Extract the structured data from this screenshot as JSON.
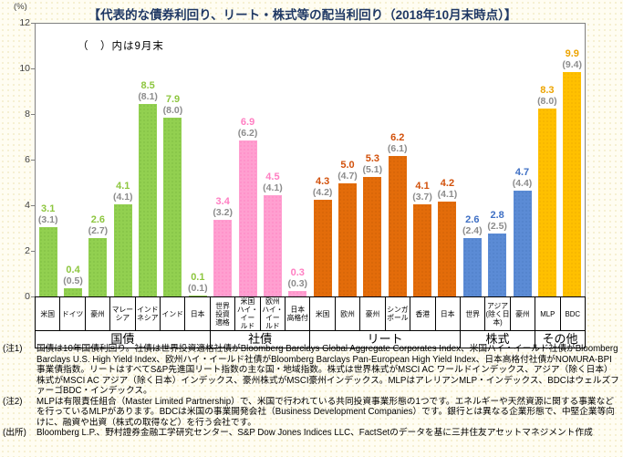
{
  "header": {
    "unit_label": "(%)",
    "title": "【代表的な債券利回り、リート・株式等の配当利回り（2018年10月末時点）】"
  },
  "chart_data": {
    "type": "bar",
    "title": "代表的な債券利回り、リート・株式等の配当利回り（2018年10月末時点）",
    "legend_note": "（　）内は9月末",
    "ylabel": "(%)",
    "ylim": [
      0,
      12
    ],
    "yticks": [
      0,
      2,
      4,
      6,
      8,
      10,
      12
    ],
    "grid": false,
    "prev_label_color": "#8C8C8C",
    "groups": [
      {
        "label": "国債",
        "bar_color": "#92D050",
        "dot_color": "#6EAC39",
        "text_color": "#8DC63F",
        "bars": [
          {
            "category": "米国",
            "lines": [
              "米国"
            ],
            "value": 3.1,
            "prev": 3.1
          },
          {
            "category": "ドイツ",
            "lines": [
              "ドイツ"
            ],
            "value": 0.4,
            "prev": 0.5
          },
          {
            "category": "豪州",
            "lines": [
              "豪州"
            ],
            "value": 2.6,
            "prev": 2.7
          },
          {
            "category": "マレーシア",
            "lines": [
              "マレー",
              "シア"
            ],
            "value": 4.1,
            "prev": 4.1
          },
          {
            "category": "インドネシア",
            "lines": [
              "インド",
              "ネシア"
            ],
            "value": 8.5,
            "prev": 8.1
          },
          {
            "category": "インド",
            "lines": [
              "インド"
            ],
            "value": 7.9,
            "prev": 8.0
          },
          {
            "category": "日本",
            "lines": [
              "日本"
            ],
            "value": 0.1,
            "prev": 0.1
          }
        ]
      },
      {
        "label": "社債",
        "bar_color": "#FF9FD0",
        "dot_color": "#FF6EB7",
        "text_color": "#FF7EC2",
        "bars": [
          {
            "category": "世界投資適格",
            "lines": [
              "世界",
              "投資",
              "適格"
            ],
            "value": 3.4,
            "prev": 3.2
          },
          {
            "category": "米国ハイ・イールド",
            "lines": [
              "米国",
              "ハイ・イー",
              "ルド"
            ],
            "value": 6.9,
            "prev": 6.2
          },
          {
            "category": "欧州ハイ・イールド",
            "lines": [
              "欧州",
              "ハイ・イー",
              "ルド"
            ],
            "value": 4.5,
            "prev": 4.1
          },
          {
            "category": "日本高格付",
            "lines": [
              "日本",
              "高格付"
            ],
            "value": 0.3,
            "prev": 0.3
          }
        ]
      },
      {
        "label": "リート",
        "bar_color": "#E36C0A",
        "dot_color": "#C05800",
        "text_color": "#D2500A",
        "bars": [
          {
            "category": "米国",
            "lines": [
              "米国"
            ],
            "value": 4.3,
            "prev": 4.2
          },
          {
            "category": "欧州",
            "lines": [
              "欧州"
            ],
            "value": 5.0,
            "prev": 4.7
          },
          {
            "category": "豪州",
            "lines": [
              "豪州"
            ],
            "value": 5.3,
            "prev": 5.1
          },
          {
            "category": "シンガポール",
            "lines": [
              "シンガ",
              "ポール"
            ],
            "value": 6.2,
            "prev": 6.1
          },
          {
            "category": "香港",
            "lines": [
              "香港"
            ],
            "value": 4.1,
            "prev": 3.7
          },
          {
            "category": "日本",
            "lines": [
              "日本"
            ],
            "value": 4.2,
            "prev": 4.1
          }
        ]
      },
      {
        "label": "株式",
        "bar_color": "#5B8BD5",
        "dot_color": "#4472B8",
        "text_color": "#3E6FC4",
        "bars": [
          {
            "category": "世界",
            "lines": [
              "世界"
            ],
            "value": 2.6,
            "prev": 2.4
          },
          {
            "category": "アジア（除く日本）",
            "lines": [
              "アジア",
              "(除く日",
              "本)"
            ],
            "value": 2.8,
            "prev": 2.5
          },
          {
            "category": "豪州",
            "lines": [
              "豪州"
            ],
            "value": 4.7,
            "prev": 4.4
          }
        ]
      },
      {
        "label": "その他",
        "bar_color": "#FFC000",
        "dot_color": "#E39E00",
        "text_color": "#EDA400",
        "bars": [
          {
            "category": "MLP",
            "lines": [
              "MLP"
            ],
            "value": 8.3,
            "prev": 8.0
          },
          {
            "category": "BDC",
            "lines": [
              "BDC"
            ],
            "value": 9.9,
            "prev": 9.4
          }
        ]
      }
    ]
  },
  "footnotes": [
    {
      "label": "(注1)",
      "text": "国債は10年国債利回り。社債は世界投資適格社債がBloomberg Barclays Global Aggregate Corporates Index、米国ハイ・イールド社債がBloomberg Barclays U.S. High Yield Index、欧州ハイ・イールド社債がBloomberg Barclays Pan-European High Yield Index、日本高格付社債がNOMURA-BPI事業債指数。リートはすべてS&P先進国リート指数の主な国・地域指数。株式は世界株式がMSCI AC ワールドインデックス、アジア（除く日本）株式がMSCI AC アジア（除く日本）インデックス、豪州株式がMSCI豪州インデックス。MLPはアレリアンMLP・インデックス、BDCはウェルズファーゴBDC・インデックス。"
    },
    {
      "label": "(注2)",
      "text": "MLPは有限責任組合（Master Limited Partnership）で、米国で行われている共同投資事業形態の1つです。エネルギーや天然資源に関する事業などを行っているMLPがあります。BDCは米国の事業開発会社（Business Development Companies）です。銀行とは異なる企業形態で、中堅企業等向けに、融資や出資（株式の取得など）を行う会社です。"
    },
    {
      "label": "(出所)",
      "text": "Bloomberg L.P.、野村證券金融工学研究センター、S&P Dow Jones Indices LLC、FactSetのデータを基に三井住友アセットマネジメント作成"
    }
  ]
}
